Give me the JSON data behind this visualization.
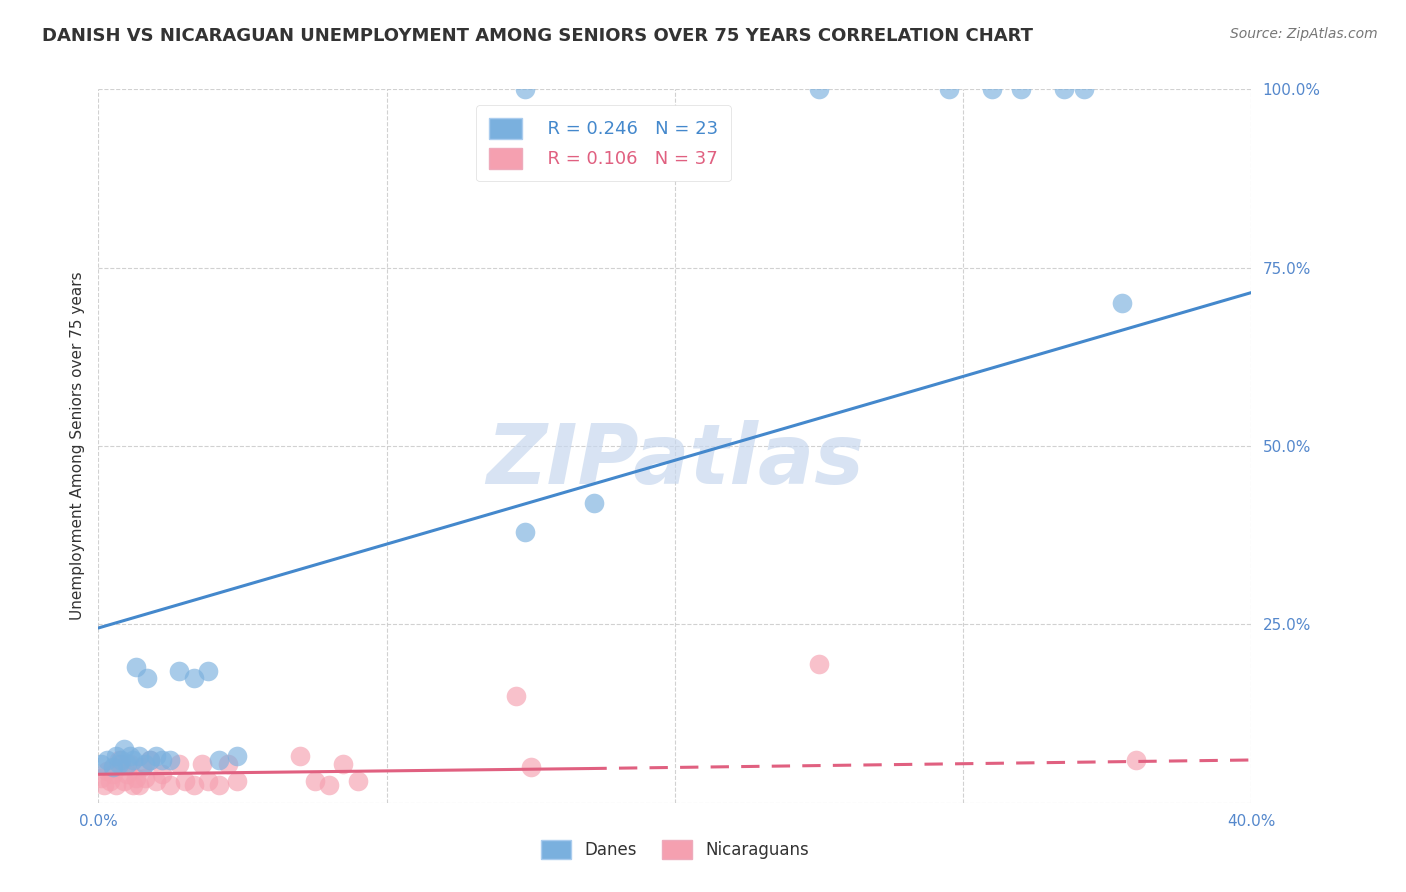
{
  "title": "DANISH VS NICARAGUAN UNEMPLOYMENT AMONG SENIORS OVER 75 YEARS CORRELATION CHART",
  "source": "Source: ZipAtlas.com",
  "ylabel": "Unemployment Among Seniors over 75 years",
  "xlim": [
    0.0,
    0.4
  ],
  "ylim": [
    0.0,
    1.0
  ],
  "xticks": [
    0.0,
    0.1,
    0.2,
    0.3,
    0.4
  ],
  "yticks": [
    0.0,
    0.25,
    0.5,
    0.75,
    1.0
  ],
  "xtick_labels": [
    "0.0%",
    "",
    "",
    "",
    "40.0%"
  ],
  "ytick_labels": [
    "",
    "25.0%",
    "50.0%",
    "75.0%",
    "100.0%"
  ],
  "background_color": "#ffffff",
  "grid_color": "#cccccc",
  "watermark_text": "ZIPatlas",
  "legend_r_blue": "R = 0.246",
  "legend_n_blue": "N = 23",
  "legend_r_pink": "R = 0.106",
  "legend_n_pink": "N = 37",
  "danes_color": "#7ab0de",
  "nicaraguans_color": "#f5a0b0",
  "trend_blue_color": "#4488cc",
  "trend_pink_color": "#e06080",
  "danes_x": [
    0.001,
    0.003,
    0.005,
    0.006,
    0.007,
    0.008,
    0.009,
    0.01,
    0.011,
    0.012,
    0.013,
    0.014,
    0.016,
    0.017,
    0.018,
    0.02,
    0.022,
    0.025,
    0.028,
    0.033,
    0.038,
    0.042,
    0.048,
    0.148,
    0.172,
    0.355
  ],
  "danes_y": [
    0.055,
    0.06,
    0.05,
    0.065,
    0.055,
    0.06,
    0.075,
    0.055,
    0.065,
    0.06,
    0.19,
    0.065,
    0.055,
    0.175,
    0.06,
    0.065,
    0.06,
    0.06,
    0.185,
    0.175,
    0.185,
    0.06,
    0.065,
    0.38,
    0.42,
    0.7
  ],
  "nicaraguans_x": [
    0.001,
    0.002,
    0.003,
    0.004,
    0.005,
    0.006,
    0.007,
    0.008,
    0.009,
    0.01,
    0.011,
    0.012,
    0.013,
    0.014,
    0.015,
    0.016,
    0.018,
    0.02,
    0.022,
    0.025,
    0.028,
    0.03,
    0.033,
    0.036,
    0.038,
    0.042,
    0.045,
    0.048,
    0.07,
    0.075,
    0.08,
    0.085,
    0.09,
    0.145,
    0.15,
    0.25,
    0.36
  ],
  "nicaraguans_y": [
    0.035,
    0.025,
    0.045,
    0.03,
    0.04,
    0.025,
    0.06,
    0.055,
    0.03,
    0.04,
    0.055,
    0.025,
    0.035,
    0.025,
    0.05,
    0.035,
    0.06,
    0.03,
    0.04,
    0.025,
    0.055,
    0.03,
    0.025,
    0.055,
    0.03,
    0.025,
    0.055,
    0.03,
    0.065,
    0.03,
    0.025,
    0.055,
    0.03,
    0.15,
    0.05,
    0.195,
    0.06
  ],
  "blue_trend_x0": 0.0,
  "blue_trend_y0": 0.245,
  "blue_trend_x1": 0.4,
  "blue_trend_y1": 0.715,
  "pink_trend_x0": 0.0,
  "pink_trend_y0": 0.04,
  "pink_trend_x1": 0.17,
  "pink_trend_y1": 0.048,
  "pink_trend_dashed_x0": 0.17,
  "pink_trend_dashed_y0": 0.048,
  "pink_trend_dashed_x1": 0.4,
  "pink_trend_dashed_y1": 0.06,
  "danes_top_x": [
    0.148,
    0.25,
    0.295,
    0.31,
    0.32,
    0.335,
    0.342
  ],
  "danes_top_y": [
    1.0,
    1.0,
    1.0,
    1.0,
    1.0,
    1.0,
    1.0
  ]
}
